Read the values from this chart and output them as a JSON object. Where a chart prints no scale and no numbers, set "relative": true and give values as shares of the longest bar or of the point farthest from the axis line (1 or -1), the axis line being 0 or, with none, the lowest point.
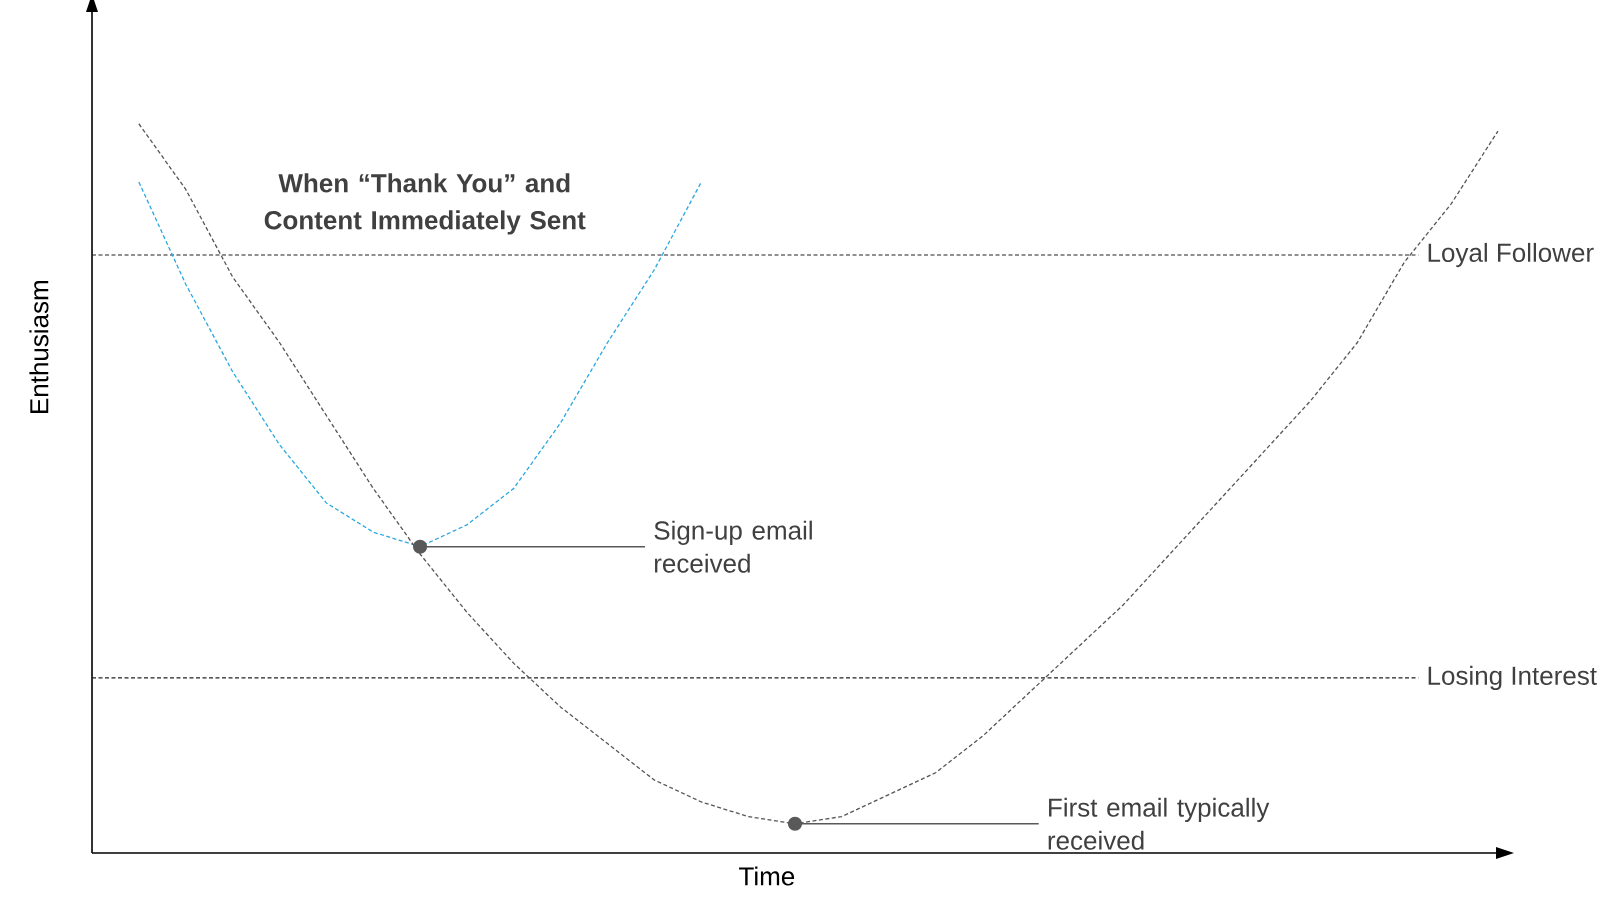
{
  "chart_data": {
    "type": "line",
    "relative": true,
    "xlabel": "Time",
    "ylabel": "Enthusiasm",
    "line_style": "dashed",
    "categories": [
      null,
      null,
      null,
      null,
      null,
      null,
      null,
      null,
      null,
      null,
      null,
      null,
      null,
      null,
      null,
      null,
      null,
      null,
      null,
      null,
      null,
      null,
      null,
      null,
      null,
      null,
      null,
      null,
      null,
      null,
      null
    ],
    "series": [
      {
        "color": "#29a8e0",
        "values": [
          null,
          0.92,
          0.78,
          0.66,
          0.56,
          0.48,
          0.44,
          0.42,
          0.45,
          0.5,
          0.59,
          0.7,
          0.8,
          0.92,
          null,
          null,
          null,
          null,
          null,
          null,
          null,
          null,
          null,
          null,
          null,
          null,
          null,
          null,
          null,
          null,
          null
        ]
      },
      {
        "color": "#555555",
        "values": [
          null,
          1.0,
          0.91,
          0.79,
          0.7,
          0.6,
          0.5,
          0.41,
          0.33,
          0.26,
          0.2,
          0.15,
          0.1,
          0.07,
          0.05,
          0.04,
          0.05,
          0.08,
          0.11,
          0.16,
          0.22,
          0.28,
          0.34,
          0.41,
          0.48,
          0.55,
          0.62,
          0.7,
          0.81,
          0.89,
          0.99
        ]
      }
    ],
    "ref_lines": [
      {
        "axis": "y",
        "value": 0.82,
        "label": "Loyal Follower",
        "color": "#222222",
        "line_style": "dashed"
      },
      {
        "axis": "y",
        "value": 0.24,
        "label": "Losing Interest",
        "color": "#222222",
        "line_style": "dashed"
      }
    ],
    "annotations": [
      "When “Thank You” and Content Immediately Sent",
      "Sign-up email received",
      "First email typically received"
    ]
  }
}
